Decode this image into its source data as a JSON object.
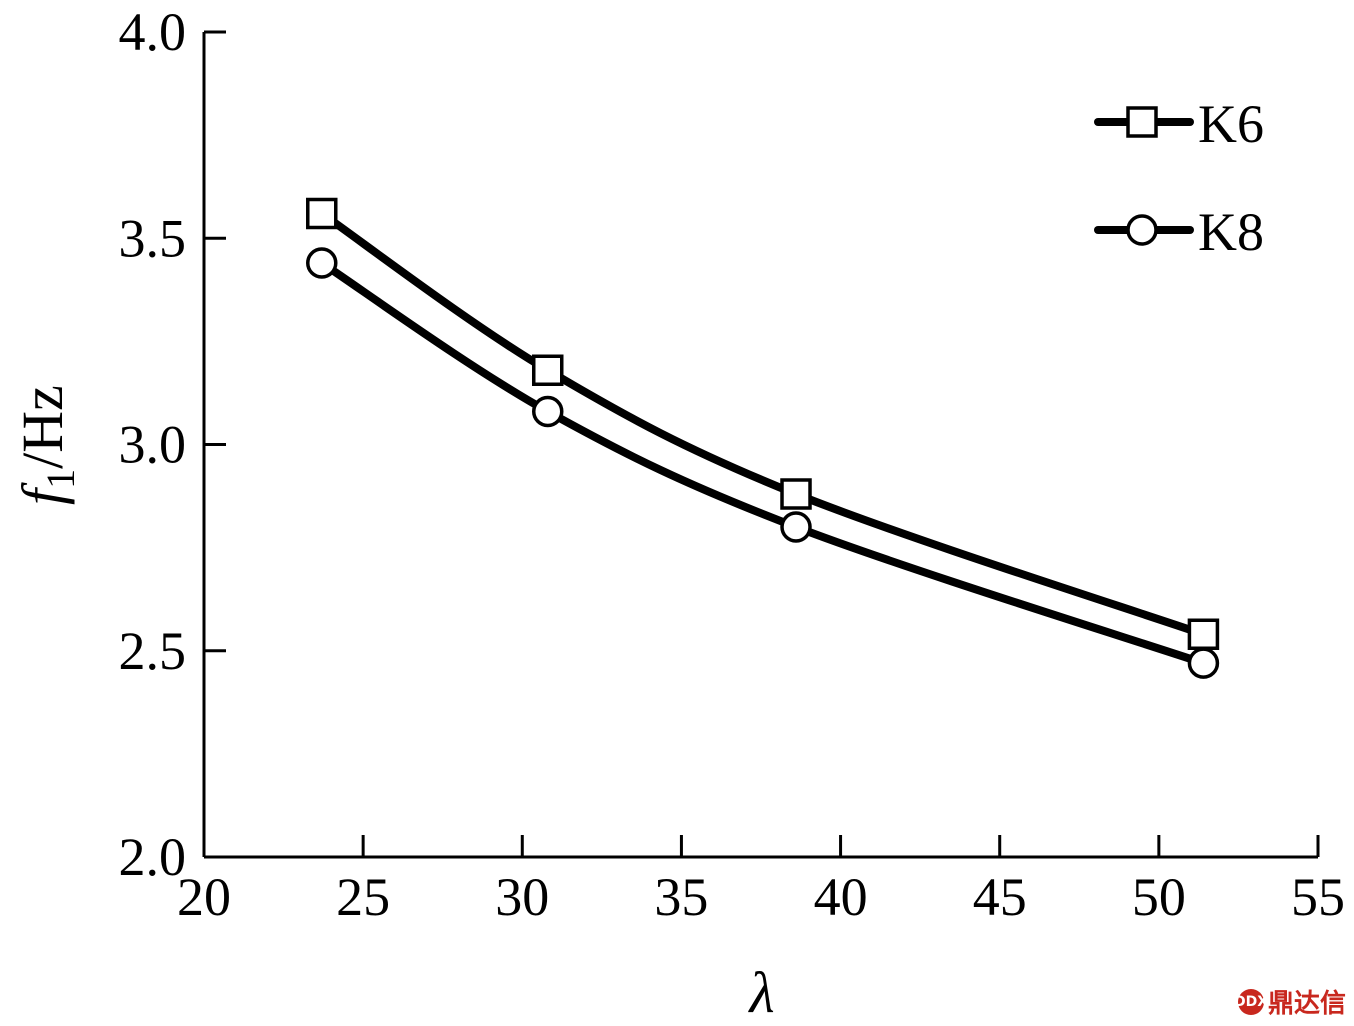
{
  "chart_data": {
    "type": "line",
    "xlabel": "λ",
    "ylabel_main": "f",
    "ylabel_sub": "1",
    "ylabel_unit": "/Hz",
    "xlim": [
      20,
      55
    ],
    "ylim": [
      2.0,
      4.0
    ],
    "x_ticks": [
      20,
      25,
      30,
      35,
      40,
      45,
      50,
      55
    ],
    "x_tick_labels": [
      "20",
      "25",
      "30",
      "35",
      "40",
      "45",
      "50",
      "55"
    ],
    "y_ticks": [
      2.0,
      2.5,
      3.0,
      3.5,
      4.0
    ],
    "y_tick_labels": [
      "2.0",
      "2.5",
      "3.0",
      "3.5",
      "4.0"
    ],
    "grid": false,
    "legend_position": "top-right",
    "series": [
      {
        "name": "K6",
        "marker": "square",
        "x": [
          23.7,
          30.8,
          38.6,
          51.4
        ],
        "y": [
          3.56,
          3.18,
          2.88,
          2.54
        ]
      },
      {
        "name": "K8",
        "marker": "circle",
        "x": [
          23.7,
          30.8,
          38.6,
          51.4
        ],
        "y": [
          3.44,
          3.08,
          2.8,
          2.47
        ]
      }
    ]
  },
  "watermark": {
    "logo": "DDX",
    "text": "鼎达信"
  }
}
